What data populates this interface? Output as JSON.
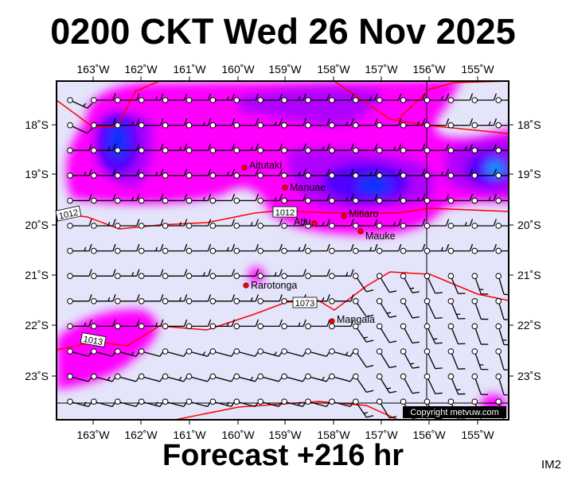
{
  "title": "0200 CKT Wed 26 Nov 2025",
  "footer": "Forecast +216 hr",
  "image_code": "IM2",
  "copyright": "Copyright metvuw.com",
  "lon_labels": [
    "163˚W",
    "162˚W",
    "161˚W",
    "160˚W",
    "159˚W",
    "158˚W",
    "157˚W",
    "156˚W",
    "155˚W"
  ],
  "lat_labels": [
    "18˚S",
    "19˚S",
    "20˚S",
    "21˚S",
    "22˚S",
    "23˚S"
  ],
  "islands": [
    {
      "name": "Aitutaki"
    },
    {
      "name": "Manuae"
    },
    {
      "name": "Atiu"
    },
    {
      "name": "Mitiaro"
    },
    {
      "name": "Mauke"
    },
    {
      "name": "Rarotonga"
    },
    {
      "name": "Mangaia"
    }
  ],
  "isobar_labels": [
    "1012",
    "1012",
    "1073",
    "1013"
  ],
  "colors": {
    "background": "#e4e4fa",
    "rain_light": "#ff00ff",
    "rain_mid": "#b000ff",
    "rain_heavy": "#5000ff",
    "rain_max": "#0030ff",
    "isobar": "#ff0000"
  }
}
